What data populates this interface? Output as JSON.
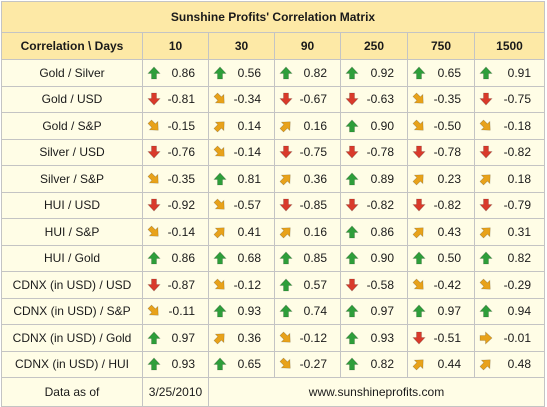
{
  "title": "Sunshine Profits' Correlation Matrix",
  "header": {
    "corner_label": "Correlation \\ Days",
    "periods": [
      "10",
      "30",
      "90",
      "250",
      "750",
      "1500"
    ]
  },
  "colors": {
    "up": "#2e9e3a",
    "down": "#d93a2b",
    "diag_up": "#e8a21a",
    "diag_down": "#e8a21a",
    "flat": "#e8a21a",
    "header_bg": "#fde9a6",
    "cell_bg": "#fffde6"
  },
  "rows": [
    {
      "label": "Gold / Silver",
      "cells": [
        {
          "v": "0.86",
          "dir": "up"
        },
        {
          "v": "0.56",
          "dir": "up"
        },
        {
          "v": "0.82",
          "dir": "up"
        },
        {
          "v": "0.92",
          "dir": "up"
        },
        {
          "v": "0.65",
          "dir": "up"
        },
        {
          "v": "0.91",
          "dir": "up"
        }
      ]
    },
    {
      "label": "Gold / USD",
      "cells": [
        {
          "v": "-0.81",
          "dir": "down"
        },
        {
          "v": "-0.34",
          "dir": "diag_down"
        },
        {
          "v": "-0.67",
          "dir": "down"
        },
        {
          "v": "-0.63",
          "dir": "down"
        },
        {
          "v": "-0.35",
          "dir": "diag_down"
        },
        {
          "v": "-0.75",
          "dir": "down"
        }
      ]
    },
    {
      "label": "Gold / S&P",
      "cells": [
        {
          "v": "-0.15",
          "dir": "diag_down"
        },
        {
          "v": "0.14",
          "dir": "diag_up"
        },
        {
          "v": "0.16",
          "dir": "diag_up"
        },
        {
          "v": "0.90",
          "dir": "up"
        },
        {
          "v": "-0.50",
          "dir": "diag_down"
        },
        {
          "v": "-0.18",
          "dir": "diag_down"
        }
      ]
    },
    {
      "label": "Silver / USD",
      "cells": [
        {
          "v": "-0.76",
          "dir": "down"
        },
        {
          "v": "-0.14",
          "dir": "diag_down"
        },
        {
          "v": "-0.75",
          "dir": "down"
        },
        {
          "v": "-0.78",
          "dir": "down"
        },
        {
          "v": "-0.78",
          "dir": "down"
        },
        {
          "v": "-0.82",
          "dir": "down"
        }
      ]
    },
    {
      "label": "Silver / S&P",
      "cells": [
        {
          "v": "-0.35",
          "dir": "diag_down"
        },
        {
          "v": "0.81",
          "dir": "up"
        },
        {
          "v": "0.36",
          "dir": "diag_up"
        },
        {
          "v": "0.89",
          "dir": "up"
        },
        {
          "v": "0.23",
          "dir": "diag_up"
        },
        {
          "v": "0.18",
          "dir": "diag_up"
        }
      ]
    },
    {
      "label": "HUI / USD",
      "cells": [
        {
          "v": "-0.92",
          "dir": "down"
        },
        {
          "v": "-0.57",
          "dir": "diag_down"
        },
        {
          "v": "-0.85",
          "dir": "down"
        },
        {
          "v": "-0.82",
          "dir": "down"
        },
        {
          "v": "-0.82",
          "dir": "down"
        },
        {
          "v": "-0.79",
          "dir": "down"
        }
      ]
    },
    {
      "label": "HUI / S&P",
      "cells": [
        {
          "v": "-0.14",
          "dir": "diag_down"
        },
        {
          "v": "0.41",
          "dir": "diag_up"
        },
        {
          "v": "0.16",
          "dir": "diag_up"
        },
        {
          "v": "0.86",
          "dir": "up"
        },
        {
          "v": "0.43",
          "dir": "diag_up"
        },
        {
          "v": "0.31",
          "dir": "diag_up"
        }
      ]
    },
    {
      "label": "HUI / Gold",
      "cells": [
        {
          "v": "0.86",
          "dir": "up"
        },
        {
          "v": "0.68",
          "dir": "up"
        },
        {
          "v": "0.85",
          "dir": "up"
        },
        {
          "v": "0.90",
          "dir": "up"
        },
        {
          "v": "0.50",
          "dir": "up"
        },
        {
          "v": "0.82",
          "dir": "up"
        }
      ]
    },
    {
      "label": "CDNX (in USD) / USD",
      "cells": [
        {
          "v": "-0.87",
          "dir": "down"
        },
        {
          "v": "-0.12",
          "dir": "diag_down"
        },
        {
          "v": "0.57",
          "dir": "up"
        },
        {
          "v": "-0.58",
          "dir": "down"
        },
        {
          "v": "-0.42",
          "dir": "diag_down"
        },
        {
          "v": "-0.29",
          "dir": "diag_down"
        }
      ]
    },
    {
      "label": "CDNX (in USD) / S&P",
      "cells": [
        {
          "v": "-0.11",
          "dir": "diag_down"
        },
        {
          "v": "0.93",
          "dir": "up"
        },
        {
          "v": "0.74",
          "dir": "up"
        },
        {
          "v": "0.97",
          "dir": "up"
        },
        {
          "v": "0.97",
          "dir": "up"
        },
        {
          "v": "0.94",
          "dir": "up"
        }
      ]
    },
    {
      "label": "CDNX (in USD) / Gold",
      "cells": [
        {
          "v": "0.97",
          "dir": "up"
        },
        {
          "v": "0.36",
          "dir": "diag_up"
        },
        {
          "v": "-0.12",
          "dir": "diag_down"
        },
        {
          "v": "0.93",
          "dir": "up"
        },
        {
          "v": "-0.51",
          "dir": "down"
        },
        {
          "v": "-0.01",
          "dir": "flat"
        }
      ]
    },
    {
      "label": "CDNX (in USD) / HUI",
      "cells": [
        {
          "v": "0.93",
          "dir": "up"
        },
        {
          "v": "0.65",
          "dir": "up"
        },
        {
          "v": "-0.27",
          "dir": "diag_down"
        },
        {
          "v": "0.82",
          "dir": "up"
        },
        {
          "v": "0.44",
          "dir": "diag_up"
        },
        {
          "v": "0.48",
          "dir": "diag_up"
        }
      ]
    }
  ],
  "footer": {
    "label": "Data as of",
    "date": "3/25/2010",
    "website": "www.sunshineprofits.com"
  }
}
